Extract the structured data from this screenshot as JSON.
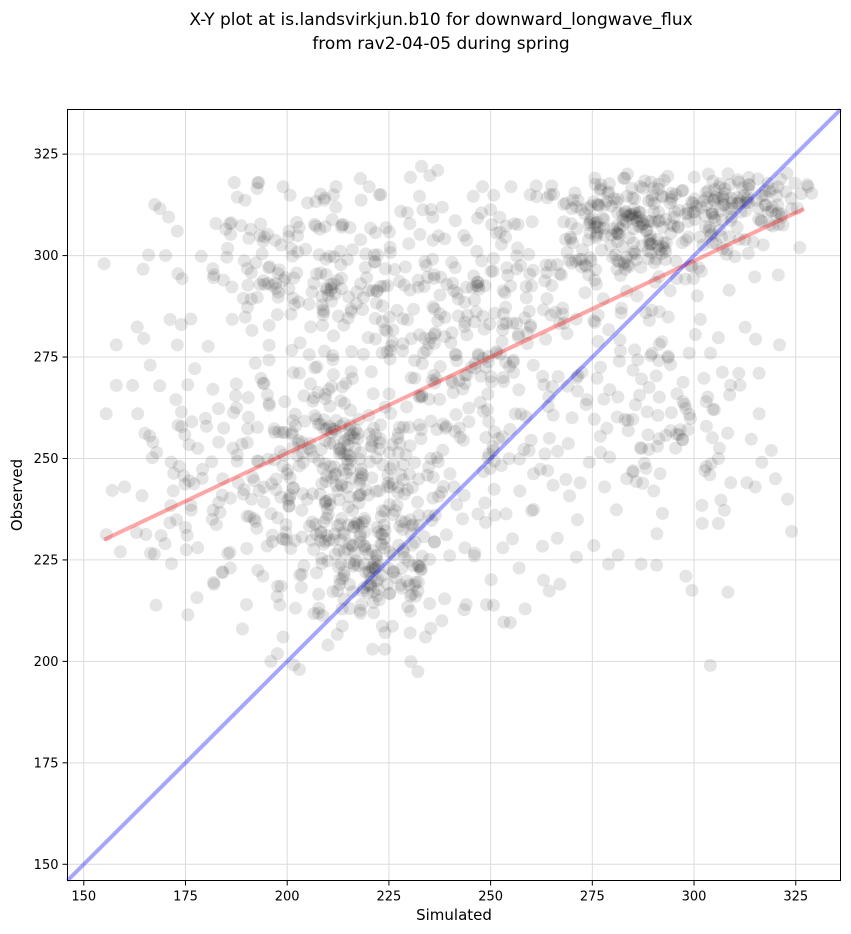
{
  "chart_data": {
    "type": "scatter",
    "title": [
      "X-Y plot at is.landsvirkjun.b10 for downward_longwave_flux",
      "from rav2-04-05 during spring"
    ],
    "xlabel": "Simulated",
    "ylabel": "Observed",
    "xlim": [
      146,
      336
    ],
    "ylim": [
      146,
      336
    ],
    "xticks": [
      150,
      175,
      200,
      225,
      250,
      275,
      300,
      325
    ],
    "yticks": [
      150,
      175,
      200,
      225,
      250,
      275,
      300,
      325
    ],
    "grid": true,
    "point_color": "#000000",
    "point_alpha": 0.1,
    "regression_line": {
      "color": "#ff0000",
      "x": [
        155,
        327
      ],
      "y": [
        230,
        311.5
      ]
    },
    "identity_line": {
      "color": "#0000ff",
      "x": [
        146,
        336
      ],
      "y": [
        146,
        336
      ]
    },
    "clusters": [
      {
        "cx": 212,
        "cy": 246,
        "sx": 14,
        "sy": 13,
        "n": 330
      },
      {
        "cx": 222,
        "cy": 222,
        "sx": 9,
        "sy": 9,
        "n": 140
      },
      {
        "cx": 285,
        "cy": 307,
        "sx": 15,
        "sy": 7,
        "n": 270
      },
      {
        "cx": 310,
        "cy": 314,
        "sx": 8,
        "sy": 3.5,
        "n": 90
      },
      {
        "cx": 205,
        "cy": 295,
        "sx": 18,
        "sy": 12,
        "n": 200
      },
      {
        "cx": 255,
        "cy": 262,
        "sx": 18,
        "sy": 22,
        "n": 210
      },
      {
        "cx": 295,
        "cy": 262,
        "sx": 12,
        "sy": 18,
        "n": 95
      },
      {
        "cx": 175,
        "cy": 245,
        "sx": 8,
        "sy": 15,
        "n": 60
      },
      {
        "cx": 240,
        "cy": 290,
        "sx": 18,
        "sy": 14,
        "n": 120
      }
    ],
    "points": [
      [
        155,
        298
      ],
      [
        155.5,
        261
      ],
      [
        158,
        278
      ],
      [
        158,
        268
      ],
      [
        159,
        227
      ],
      [
        160,
        243
      ],
      [
        162,
        268
      ],
      [
        167,
        254
      ],
      [
        173,
        306
      ],
      [
        174,
        283
      ],
      [
        173,
        278
      ],
      [
        187,
        318
      ],
      [
        193,
        318
      ],
      [
        199,
        317
      ],
      [
        205,
        313
      ],
      [
        212,
        317
      ],
      [
        218,
        319
      ],
      [
        233,
        322
      ],
      [
        237,
        321
      ],
      [
        248,
        317
      ],
      [
        255,
        317
      ],
      [
        196,
        200
      ],
      [
        203,
        198
      ],
      [
        199,
        206
      ],
      [
        189,
        208
      ],
      [
        210,
        204
      ],
      [
        221,
        203
      ],
      [
        224,
        203
      ],
      [
        234,
        206
      ],
      [
        238,
        210
      ],
      [
        244,
        214
      ],
      [
        249,
        214
      ],
      [
        298,
        221
      ],
      [
        304,
        199
      ],
      [
        302,
        234
      ],
      [
        306,
        234
      ],
      [
        309,
        244
      ],
      [
        313,
        244
      ],
      [
        316,
        261
      ],
      [
        319,
        252
      ],
      [
        320,
        245
      ],
      [
        323,
        240
      ],
      [
        324,
        232
      ],
      [
        321,
        278
      ],
      [
        326,
        302
      ],
      [
        328,
        317
      ],
      [
        311,
        271
      ],
      [
        316,
        271
      ],
      [
        303,
        264
      ],
      [
        305,
        262
      ],
      [
        279,
        224
      ],
      [
        287,
        224
      ],
      [
        267,
        219
      ],
      [
        263,
        220
      ],
      [
        257,
        223
      ],
      [
        246,
        226
      ],
      [
        253,
        228
      ],
      [
        264,
        247
      ],
      [
        251,
        236
      ],
      [
        241,
        243
      ],
      [
        303,
        248
      ],
      [
        306,
        250
      ],
      [
        278,
        243
      ],
      [
        291,
        253
      ],
      [
        272,
        244
      ],
      [
        285,
        247
      ],
      [
        170,
        229
      ],
      [
        169,
        231
      ],
      [
        172,
        242
      ],
      [
        175,
        233
      ],
      [
        178,
        228
      ],
      [
        182,
        219
      ],
      [
        184,
        222
      ],
      [
        186,
        223
      ],
      [
        190,
        214
      ],
      [
        194,
        221
      ]
    ]
  }
}
